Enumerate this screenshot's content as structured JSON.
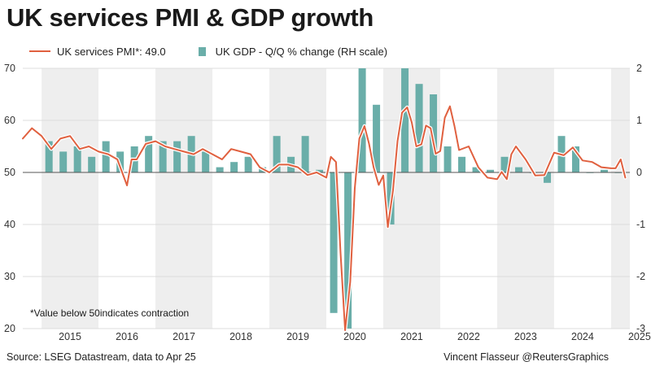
{
  "title": "UK services PMI & GDP growth",
  "legend": {
    "line": "UK services PMI*: 49.0",
    "bars": "UK GDP - Q/Q % change (RH scale)"
  },
  "note": "*Value below 50indicates contraction",
  "source": "Source: LSEG Datastream, data to Apr 25",
  "credit": "Vincent Flasseur @ReutersGraphics",
  "colors": {
    "line": "#e0603f",
    "bars": "#6aaea9",
    "band": "#eeeeee",
    "zero": "#555555"
  },
  "chart_data": {
    "type": "bar+line",
    "years": [
      "2015",
      "2016",
      "2017",
      "2018",
      "2019",
      "2020",
      "2021",
      "2022",
      "2023",
      "2024",
      "2025"
    ],
    "x_range": [
      2014.67,
      2025.33
    ],
    "left_axis": {
      "ylim": [
        20,
        70
      ],
      "ticks": [
        "70",
        "60",
        "50",
        "40",
        "30",
        "20"
      ]
    },
    "right_axis": {
      "ylim": [
        -3,
        2
      ],
      "ticks": [
        "2",
        "1",
        "0",
        "-1",
        "-2",
        "-3"
      ]
    },
    "grid": true,
    "series": [
      {
        "name": "UK GDP - Q/Q % change (RH scale)",
        "kind": "bar",
        "axis": "right",
        "x": [
          2015.13,
          2015.38,
          2015.63,
          2015.88,
          2016.13,
          2016.38,
          2016.63,
          2016.88,
          2017.13,
          2017.38,
          2017.63,
          2017.88,
          2018.13,
          2018.38,
          2018.63,
          2018.88,
          2019.13,
          2019.38,
          2019.63,
          2019.88,
          2020.13,
          2020.38,
          2020.63,
          2020.88,
          2021.13,
          2021.38,
          2021.63,
          2021.88,
          2022.13,
          2022.38,
          2022.63,
          2022.88,
          2023.13,
          2023.38,
          2023.63,
          2023.88,
          2024.13,
          2024.38,
          2024.63,
          2024.88,
          2025.13
        ],
        "values": [
          0.6,
          0.4,
          0.5,
          0.3,
          0.6,
          0.4,
          0.5,
          0.7,
          0.6,
          0.6,
          0.7,
          0.4,
          0.1,
          0.2,
          0.3,
          0.1,
          0.7,
          0.3,
          0.7,
          0.05,
          -2.7,
          -3.1,
          2.0,
          1.3,
          -1.0,
          2.0,
          1.7,
          1.5,
          0.5,
          0.3,
          0.1,
          0.05,
          0.3,
          0.1,
          -0.01,
          -0.2,
          0.7,
          0.5,
          0.0,
          0.05,
          0.0
        ]
      },
      {
        "name": "UK services PMI*: 49.0",
        "kind": "line",
        "axis": "left",
        "x": [
          2014.67,
          2014.83,
          2015.0,
          2015.17,
          2015.33,
          2015.5,
          2015.67,
          2015.83,
          2016.0,
          2016.17,
          2016.33,
          2016.5,
          2016.58,
          2016.67,
          2016.83,
          2017.0,
          2017.17,
          2017.33,
          2017.5,
          2017.67,
          2017.83,
          2018.0,
          2018.17,
          2018.33,
          2018.5,
          2018.67,
          2018.83,
          2019.0,
          2019.17,
          2019.33,
          2019.5,
          2019.67,
          2019.83,
          2020.0,
          2020.08,
          2020.17,
          2020.25,
          2020.33,
          2020.42,
          2020.5,
          2020.58,
          2020.67,
          2020.75,
          2020.83,
          2020.92,
          2021.0,
          2021.08,
          2021.17,
          2021.25,
          2021.33,
          2021.42,
          2021.5,
          2021.58,
          2021.67,
          2021.75,
          2021.83,
          2021.92,
          2022.0,
          2022.08,
          2022.17,
          2022.25,
          2022.33,
          2022.5,
          2022.67,
          2022.83,
          2023.0,
          2023.08,
          2023.17,
          2023.25,
          2023.33,
          2023.5,
          2023.67,
          2023.83,
          2024.0,
          2024.17,
          2024.33,
          2024.5,
          2024.67,
          2024.83,
          2025.0,
          2025.08,
          2025.17,
          2025.25
        ],
        "values": [
          56.5,
          58.5,
          57.0,
          54.5,
          56.5,
          57.0,
          54.5,
          55.0,
          54.0,
          53.5,
          52.5,
          47.5,
          52.5,
          52.5,
          55.5,
          56.0,
          55.0,
          54.5,
          54.0,
          53.5,
          54.5,
          53.5,
          52.5,
          54.5,
          54.0,
          53.5,
          51.0,
          50.0,
          51.5,
          51.5,
          51.0,
          49.5,
          50.0,
          49.0,
          53.0,
          52.0,
          34.5,
          13.5,
          29.0,
          47.0,
          56.5,
          58.9,
          55.5,
          51.0,
          47.6,
          49.4,
          39.5,
          46.5,
          56.0,
          61.5,
          62.5,
          59.6,
          55.0,
          55.4,
          59.0,
          58.5,
          53.6,
          54.1,
          60.5,
          62.7,
          58.9,
          54.3,
          55.0,
          51.0,
          49.0,
          48.7,
          50.1,
          48.7,
          53.5,
          55.0,
          52.5,
          49.4,
          49.5,
          53.8,
          53.3,
          54.8,
          52.3,
          52.0,
          51.0,
          50.8,
          50.8,
          52.5,
          49.0
        ]
      }
    ]
  }
}
